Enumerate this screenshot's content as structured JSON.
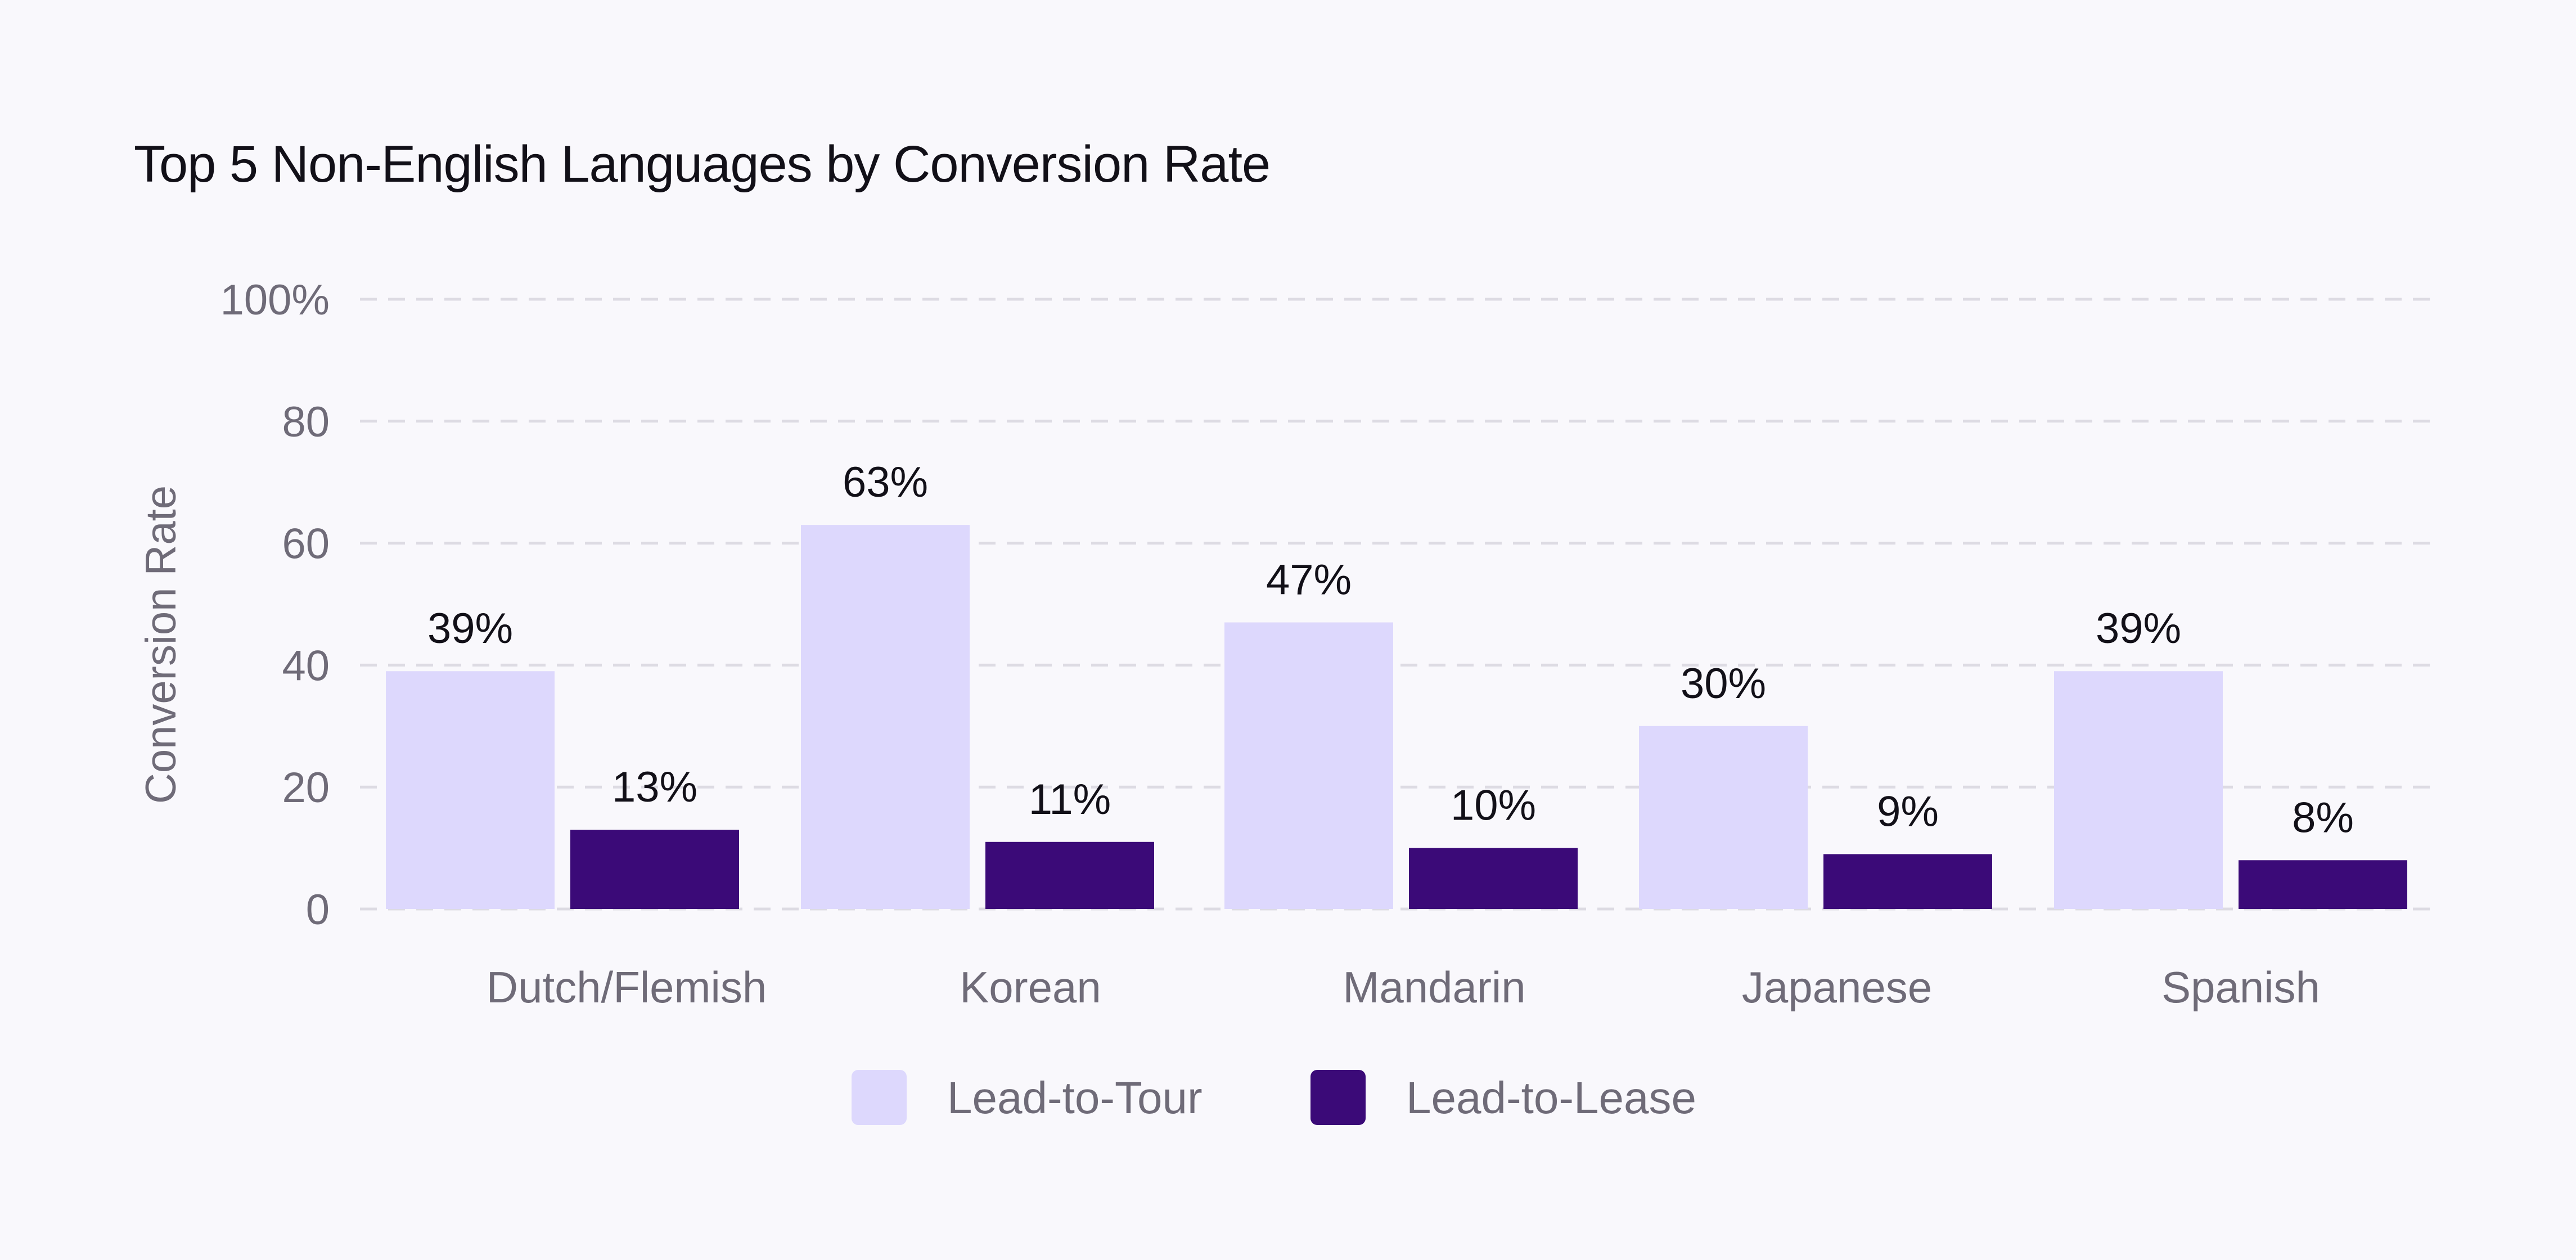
{
  "chart_data": {
    "type": "bar",
    "title": "Top 5 Non-English Languages by Conversion Rate",
    "xlabel": "",
    "ylabel": "Conversion Rate",
    "ylim": [
      0,
      100
    ],
    "y_ticks": [
      0,
      20,
      40,
      60,
      80,
      100
    ],
    "y_tick_labels": [
      "0",
      "20",
      "40",
      "60",
      "80",
      "100%"
    ],
    "grid": true,
    "legend_position": "bottom-center",
    "categories": [
      "Dutch/Flemish",
      "Korean",
      "Mandarin",
      "Japanese",
      "Spanish"
    ],
    "series": [
      {
        "name": "Lead-to-Tour",
        "color": "#ddd8fd",
        "values": [
          39,
          63,
          47,
          30,
          39
        ],
        "labels": [
          "39%",
          "63%",
          "47%",
          "30%",
          "39%"
        ]
      },
      {
        "name": "Lead-to-Lease",
        "color": "#3b0a78",
        "values": [
          13,
          11,
          10,
          9,
          8
        ],
        "labels": [
          "13%",
          "11%",
          "10%",
          "9%",
          "8%"
        ]
      }
    ]
  }
}
